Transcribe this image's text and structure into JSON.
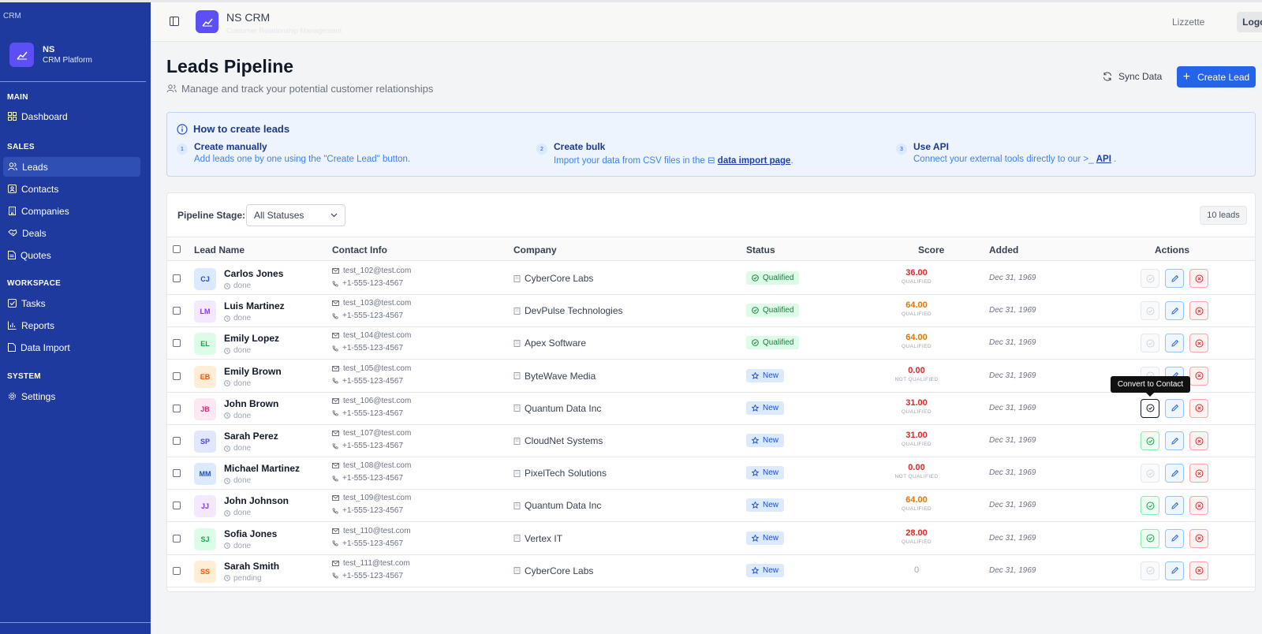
{
  "sidebar": {
    "top_label": "CRM",
    "brand_name": "NS",
    "brand_sub": "CRM Platform",
    "sections": [
      {
        "title": "MAIN",
        "items": [
          {
            "label": "Dashboard",
            "icon": "layout-grid-icon"
          }
        ]
      },
      {
        "title": "SALES",
        "items": [
          {
            "label": "Leads",
            "icon": "users-icon",
            "active": true
          },
          {
            "label": "Contacts",
            "icon": "contact-icon"
          },
          {
            "label": "Companies",
            "icon": "building-icon"
          },
          {
            "label": "Deals",
            "icon": "handshake-icon"
          },
          {
            "label": "Quotes",
            "icon": "file-text-icon"
          }
        ]
      },
      {
        "title": "WORKSPACE",
        "items": [
          {
            "label": "Tasks",
            "icon": "check-square-icon"
          },
          {
            "label": "Reports",
            "icon": "bar-chart-icon"
          },
          {
            "label": "Data Import",
            "icon": "file-icon"
          }
        ]
      },
      {
        "title": "SYSTEM",
        "items": [
          {
            "label": "Settings",
            "icon": "gear-icon"
          }
        ]
      }
    ]
  },
  "header": {
    "title": "NS CRM",
    "subtitle": "Customer Relationship Management",
    "user": "Lizzette",
    "logout_label": "Logout"
  },
  "page": {
    "title": "Leads Pipeline",
    "subtitle": "Manage and track your potential customer relationships",
    "sync_label": "Sync Data",
    "create_label": "Create Lead"
  },
  "info": {
    "title": "How to create leads",
    "steps": [
      {
        "num": "1",
        "heading": "Create manually",
        "text": "Add leads one by one using the \"Create Lead\" button."
      },
      {
        "num": "2",
        "heading": "Create bulk",
        "text_before": "Import your data from CSV files in the",
        "link": "data import page",
        "text_after": "."
      },
      {
        "num": "3",
        "heading": "Use API",
        "text_before": "Connect your external tools directly to our",
        "link": "API",
        "text_after": "."
      }
    ]
  },
  "filter": {
    "label": "Pipeline Stage:",
    "selected": "All Statuses",
    "count_label": "10 leads"
  },
  "table": {
    "headers": [
      "Lead Name",
      "Contact Info",
      "Company",
      "Status",
      "Score",
      "Added",
      "Actions"
    ],
    "rows": [
      {
        "initials": "CJ",
        "name": "Carlos Jones",
        "task": "done",
        "email": "test_102@test.com",
        "phone": "+1-555-123-4567",
        "company": "CyberCore Labs",
        "status": "Qualified",
        "score": "36.00",
        "score_label": "QUALIFIED",
        "added": "Dec 31, 1969"
      },
      {
        "initials": "LM",
        "name": "Luis Martinez",
        "task": "done",
        "email": "test_103@test.com",
        "phone": "+1-555-123-4567",
        "company": "DevPulse Technologies",
        "status": "Qualified",
        "score": "64.00",
        "score_label": "QUALIFIED",
        "added": "Dec 31, 1969"
      },
      {
        "initials": "EL",
        "name": "Emily Lopez",
        "task": "done",
        "email": "test_104@test.com",
        "phone": "+1-555-123-4567",
        "company": "Apex Software",
        "status": "Qualified",
        "score": "64.00",
        "score_label": "QUALIFIED",
        "added": "Dec 31, 1969"
      },
      {
        "initials": "EB",
        "name": "Emily Brown",
        "task": "done",
        "email": "test_105@test.com",
        "phone": "+1-555-123-4567",
        "company": "ByteWave Media",
        "status": "New",
        "score": "0.00",
        "score_label": "NOT QUALIFIED",
        "added": "Dec 31, 1969"
      },
      {
        "initials": "JB",
        "name": "John Brown",
        "task": "done",
        "email": "test_106@test.com",
        "phone": "+1-555-123-4567",
        "company": "Quantum Data Inc",
        "status": "New",
        "score": "31.00",
        "score_label": "QUALIFIED",
        "added": "Dec 31, 1969"
      },
      {
        "initials": "SP",
        "name": "Sarah Perez",
        "task": "done",
        "email": "test_107@test.com",
        "phone": "+1-555-123-4567",
        "company": "CloudNet Systems",
        "status": "New",
        "score": "31.00",
        "score_label": "QUALIFIED",
        "added": "Dec 31, 1969"
      },
      {
        "initials": "MM",
        "name": "Michael Martinez",
        "task": "done",
        "email": "test_108@test.com",
        "phone": "+1-555-123-4567",
        "company": "PixelTech Solutions",
        "status": "New",
        "score": "0.00",
        "score_label": "NOT QUALIFIED",
        "added": "Dec 31, 1969"
      },
      {
        "initials": "JJ",
        "name": "John Johnson",
        "task": "done",
        "email": "test_109@test.com",
        "phone": "+1-555-123-4567",
        "company": "Quantum Data Inc",
        "status": "New",
        "score": "64.00",
        "score_label": "QUALIFIED",
        "added": "Dec 31, 1969"
      },
      {
        "initials": "SJ",
        "name": "Sofia Jones",
        "task": "done",
        "email": "test_110@test.com",
        "phone": "+1-555-123-4567",
        "company": "Vertex IT",
        "status": "New",
        "score": "28.00",
        "score_label": "QUALIFIED",
        "added": "Dec 31, 1969"
      },
      {
        "initials": "SS",
        "name": "Sarah Smith",
        "task": "pending",
        "email": "test_111@test.com",
        "phone": "+1-555-123-4567",
        "company": "CyberCore Labs",
        "status": "New",
        "score": "0",
        "score_label": "",
        "added": "Dec 31, 1969"
      }
    ]
  },
  "tooltip": "Convert to Contact",
  "colors": {
    "sidebar_bg": "#1e3a9f",
    "accent": "#2563eb",
    "brand_logo": "#5b4ff5",
    "score_red": "#dc2626",
    "score_orange": "#d97706"
  }
}
